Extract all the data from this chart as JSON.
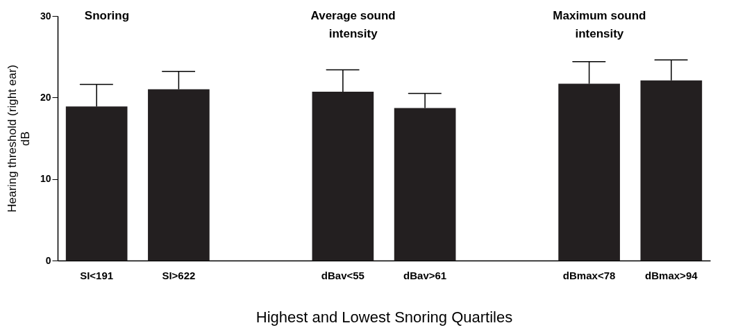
{
  "chart_data": {
    "type": "bar",
    "ylabel": "Hearing threshold (right ear)\ndB",
    "xlabel": "Highest and Lowest Snoring Quartiles",
    "categories": [
      "SI<191",
      "SI>622",
      null,
      "dBav<55",
      "dBav>61",
      null,
      "dBmax<78",
      "dBmax>94"
    ],
    "values": [
      18.9,
      21.0,
      null,
      20.7,
      18.7,
      null,
      21.7,
      22.1
    ],
    "errors": [
      [
        18.9,
        21.6
      ],
      [
        21.0,
        23.2
      ],
      null,
      [
        20.7,
        23.4
      ],
      [
        18.7,
        20.5
      ],
      null,
      [
        21.7,
        24.4
      ],
      [
        22.1,
        24.6
      ]
    ],
    "color": "#231f20",
    "ylim": [
      0,
      30
    ],
    "yticks": [
      0,
      10,
      20,
      30
    ],
    "annotations": [
      "Snoring",
      "Average sound intensity",
      "Maximum sound intensity"
    ]
  }
}
